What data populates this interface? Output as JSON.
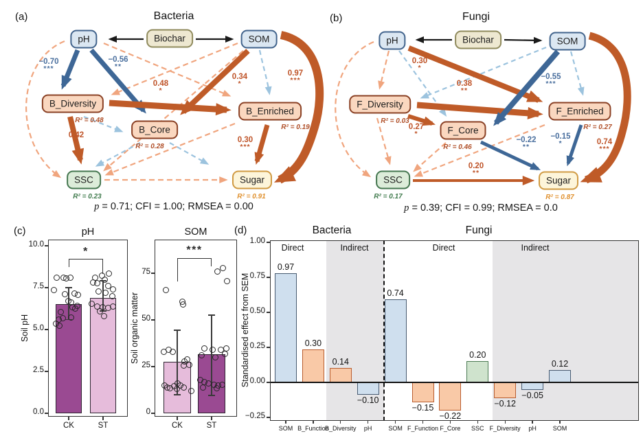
{
  "panel_a": {
    "label": "(a)",
    "title": "Bacteria",
    "stats": {
      "p": "p",
      "rest": " = 0.71; CFI = 1.00; RMSEA = 0.00"
    },
    "nodes": {
      "ph": "pH",
      "biochar": "Biochar",
      "som": "SOM",
      "diversity": "B_Diversity",
      "core": "B_Core",
      "enriched": "B_Enriched",
      "ssc": "SSC",
      "sugar": "Sugar"
    },
    "r2": {
      "diversity": "R² = 0.48",
      "core": "R² = 0.28",
      "enriched": "R² = 0.19",
      "ssc": "R² = 0.23",
      "sugar": "R² = 0.91"
    },
    "edges": {
      "ph_diversity": {
        "value": "−0.70",
        "sig": "***"
      },
      "ph_core": {
        "value": "−0.56",
        "sig": "**"
      },
      "diversity_enriched": {
        "value": "0.48",
        "sig": "*"
      },
      "som_core": {
        "value": "0.34",
        "sig": "*"
      },
      "som_sugar": {
        "value": "0.97",
        "sig": "***"
      },
      "diversity_ssc": {
        "value": "0.42",
        "sig": "*"
      },
      "enriched_sugar": {
        "value": "0.30",
        "sig": "***"
      }
    }
  },
  "panel_b": {
    "label": "(b)",
    "title": "Fungi",
    "stats": {
      "p": "p",
      "rest": " = 0.39; CFI = 0.99; RMSEA = 0.0"
    },
    "nodes": {
      "ph": "pH",
      "biochar": "Biochar",
      "som": "SOM",
      "diversity": "F_Diversity",
      "core": "F_Core",
      "enriched": "F_Enriched",
      "ssc": "SSC",
      "sugar": "Sugar"
    },
    "r2": {
      "diversity": "R² = 0.03",
      "core": "R² = 0.46",
      "enriched": "R² = 0.27",
      "ssc": "R² = 0.17",
      "sugar": "R² = 0.87"
    },
    "edges": {
      "ph_enriched": {
        "value": "0.30",
        "sig": "*"
      },
      "diversity_enriched": {
        "value": "0.38",
        "sig": "**"
      },
      "som_core": {
        "value": "−0.55",
        "sig": "***"
      },
      "diversity_core": {
        "value": "0.27",
        "sig": "*"
      },
      "core_sugar": {
        "value": "−0.22",
        "sig": "**"
      },
      "enriched_sugar": {
        "value": "−0.15",
        "sig": "*"
      },
      "som_sugar": {
        "value": "0.74",
        "sig": "***"
      },
      "ssc_sugar": {
        "value": "0.20",
        "sig": "**"
      }
    }
  },
  "panel_c_label": "(c)",
  "panel_d_label": "(d)",
  "chart_data": [
    {
      "id": "soil_ph",
      "type": "bar",
      "title": "pH",
      "ylabel": "Soil pH",
      "ylim": [
        0,
        10
      ],
      "yticks": [
        0,
        2.5,
        5,
        7.5,
        10
      ],
      "ytick_labels": [
        "0.0",
        "2.5",
        "5.0",
        "7.5",
        "10.0"
      ],
      "categories": [
        "CK",
        "ST"
      ],
      "values": [
        6.5,
        6.9
      ],
      "error_low": [
        5.6,
        6.1
      ],
      "error_high": [
        7.5,
        7.9
      ],
      "significance": "*",
      "bar_colors": [
        "#9a4a92",
        "#e6bcdb"
      ],
      "points": [
        [
          [
            -18,
            8.1
          ],
          [
            -8,
            8.1
          ],
          [
            -4,
            8.08
          ],
          [
            2,
            8.1
          ],
          [
            -22,
            7.35
          ],
          [
            -6,
            7.12
          ],
          [
            8,
            7.15
          ],
          [
            13,
            7.1
          ],
          [
            -1,
            6.7
          ],
          [
            3,
            6.62
          ],
          [
            -12,
            6.05
          ],
          [
            5,
            6.35
          ],
          [
            9,
            6.28
          ],
          [
            12,
            6.42
          ],
          [
            -15,
            5.62
          ],
          [
            -9,
            5.68
          ],
          [
            3,
            5.72
          ],
          [
            -19,
            5.35
          ],
          [
            -14,
            5.22
          ]
        ],
        [
          [
            8,
            8.35
          ],
          [
            -2,
            8.22
          ],
          [
            -12,
            8.1
          ],
          [
            2,
            8.0
          ],
          [
            -15,
            7.8
          ],
          [
            -9,
            7.78
          ],
          [
            7,
            7.62
          ],
          [
            14,
            7.42
          ],
          [
            -7,
            7.3
          ],
          [
            3,
            7.2
          ],
          [
            13,
            7.0
          ],
          [
            -17,
            6.55
          ],
          [
            -9,
            6.4
          ],
          [
            -1,
            6.35
          ],
          [
            7,
            6.3
          ],
          [
            14,
            6.38
          ],
          [
            -5,
            6.1
          ],
          [
            1,
            5.8
          ]
        ]
      ]
    },
    {
      "id": "soil_organic_matter",
      "type": "bar",
      "title": "SOM",
      "ylabel": "Soil organic matter",
      "ylim": [
        0,
        90
      ],
      "yticks": [
        0,
        25,
        50,
        75
      ],
      "ytick_labels": [
        "0",
        "25",
        "50",
        "75"
      ],
      "categories": [
        "CK",
        "ST"
      ],
      "values": [
        27.5,
        31.5
      ],
      "error_low": [
        10,
        9.5
      ],
      "error_high": [
        44.5,
        52.5
      ],
      "significance": "***",
      "bar_colors": [
        "#e6bcdb",
        "#9a4a92"
      ],
      "points": [
        [
          [
            -17,
            66
          ],
          [
            7,
            60
          ],
          [
            8,
            58.5
          ],
          [
            -20,
            33
          ],
          [
            -13,
            34
          ],
          [
            -7,
            33
          ],
          [
            14,
            29
          ],
          [
            10,
            28
          ],
          [
            17,
            26
          ],
          [
            9,
            25.5
          ],
          [
            -19,
            15
          ],
          [
            -15,
            14
          ],
          [
            -11,
            13.5
          ],
          [
            -5,
            14.5
          ],
          [
            0,
            16
          ],
          [
            4,
            15
          ],
          [
            9,
            14
          ],
          [
            -1,
            13
          ],
          [
            20,
            12
          ]
        ],
        [
          [
            16,
            78
          ],
          [
            8,
            76
          ],
          [
            22,
            71
          ],
          [
            -11,
            35
          ],
          [
            1,
            34
          ],
          [
            13,
            34
          ],
          [
            21,
            35
          ],
          [
            -15,
            31
          ],
          [
            5,
            30
          ],
          [
            19,
            32
          ],
          [
            -17,
            18
          ],
          [
            -11,
            17
          ],
          [
            -5,
            16
          ],
          [
            3,
            15.5
          ],
          [
            9,
            15
          ],
          [
            15,
            15.5
          ],
          [
            -13,
            14
          ],
          [
            7,
            13.5
          ]
        ]
      ]
    },
    {
      "id": "sem_effects",
      "type": "bar",
      "group_titles": [
        "Bacteria",
        "Fungi"
      ],
      "sections": [
        {
          "label": "Direct"
        },
        {
          "label": "Indirect"
        },
        {
          "label": "Direct"
        },
        {
          "label": "Indirect"
        }
      ],
      "ylabel": "Standardised effect from SEM",
      "ylim": [
        -0.3,
        1.05
      ],
      "yticks": [
        1.0,
        0.75,
        0.5,
        0.25,
        0.0,
        -0.25
      ],
      "ytick_labels": [
        "1.00",
        "0.75",
        "0.50",
        "0.25",
        "0.00",
        "−0.25"
      ],
      "bars": [
        {
          "category": "SOM",
          "label": "0.97",
          "value": 0.97,
          "draw": 0.78,
          "color": "blue"
        },
        {
          "category": "B_Function",
          "label": "0.30",
          "value": 0.3,
          "draw": 0.235,
          "color": "orange"
        },
        {
          "category": "B_Diversity",
          "label": "0.14",
          "value": 0.14,
          "draw": 0.105,
          "color": "orange"
        },
        {
          "category": "pH",
          "label": "−0.10",
          "value": -0.1,
          "draw": -0.09,
          "color": "blue"
        },
        {
          "category": "SOM",
          "label": "0.74",
          "value": 0.74,
          "draw": 0.595,
          "color": "blue"
        },
        {
          "category": "F_Function",
          "label": "−0.15",
          "value": -0.15,
          "draw": -0.14,
          "color": "orange"
        },
        {
          "category": "F_Core",
          "label": "−0.22",
          "value": -0.22,
          "draw": -0.2,
          "color": "orange"
        },
        {
          "category": "SSC",
          "label": "0.20",
          "value": 0.2,
          "draw": 0.15,
          "color": "green"
        },
        {
          "category": "F_Diversity",
          "label": "−0.12",
          "value": -0.12,
          "draw": -0.115,
          "color": "orange"
        },
        {
          "category": "pH",
          "label": "−0.05",
          "value": -0.05,
          "draw": -0.055,
          "color": "blue"
        },
        {
          "category": "SOM",
          "label": "0.12",
          "value": 0.12,
          "draw": 0.09,
          "color": "blue"
        }
      ]
    }
  ]
}
